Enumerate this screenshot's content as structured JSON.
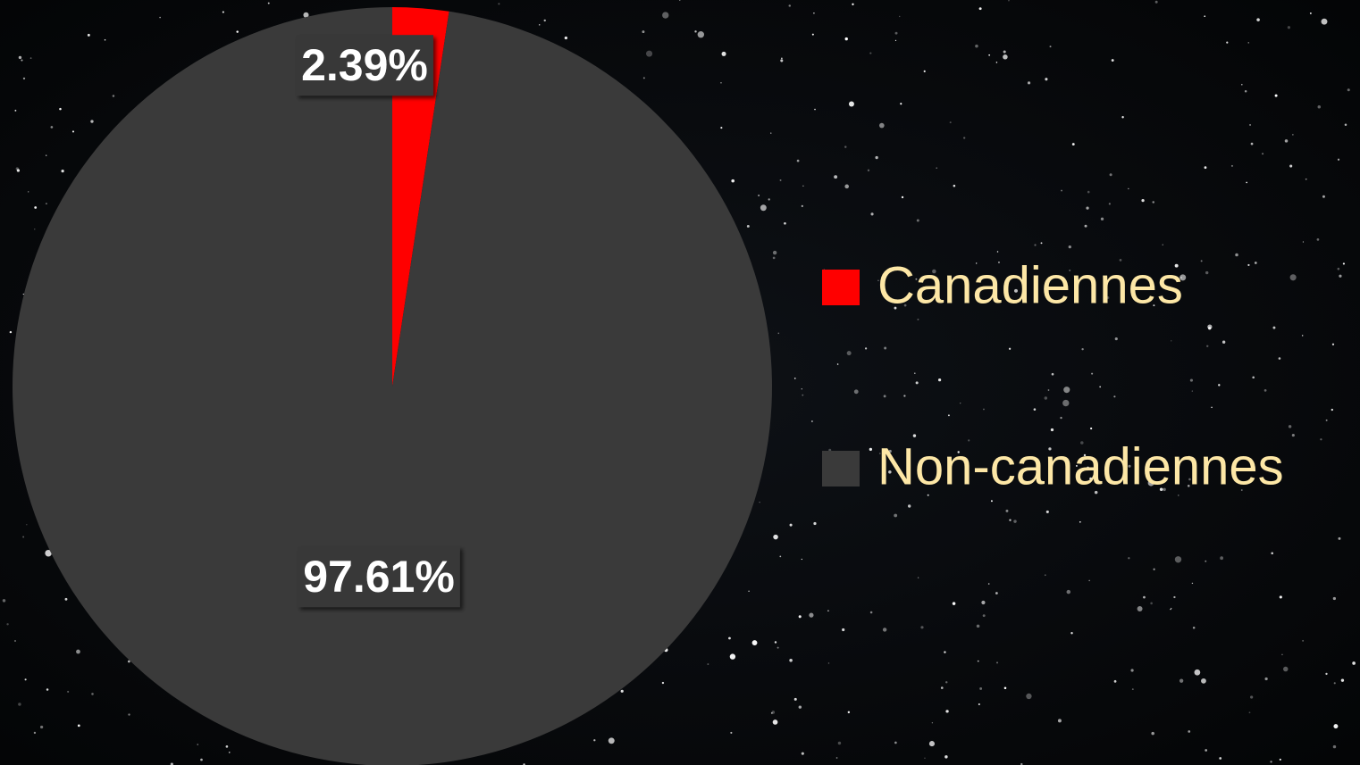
{
  "chart_data": {
    "type": "pie",
    "categories": [
      "Canadiennes",
      "Non-canadiennes"
    ],
    "values": [
      2.39,
      97.61
    ],
    "value_labels": [
      "2.39%",
      "97.61%"
    ],
    "colors": [
      "#ff0000",
      "#3a3a3a"
    ],
    "legend": "right"
  }
}
